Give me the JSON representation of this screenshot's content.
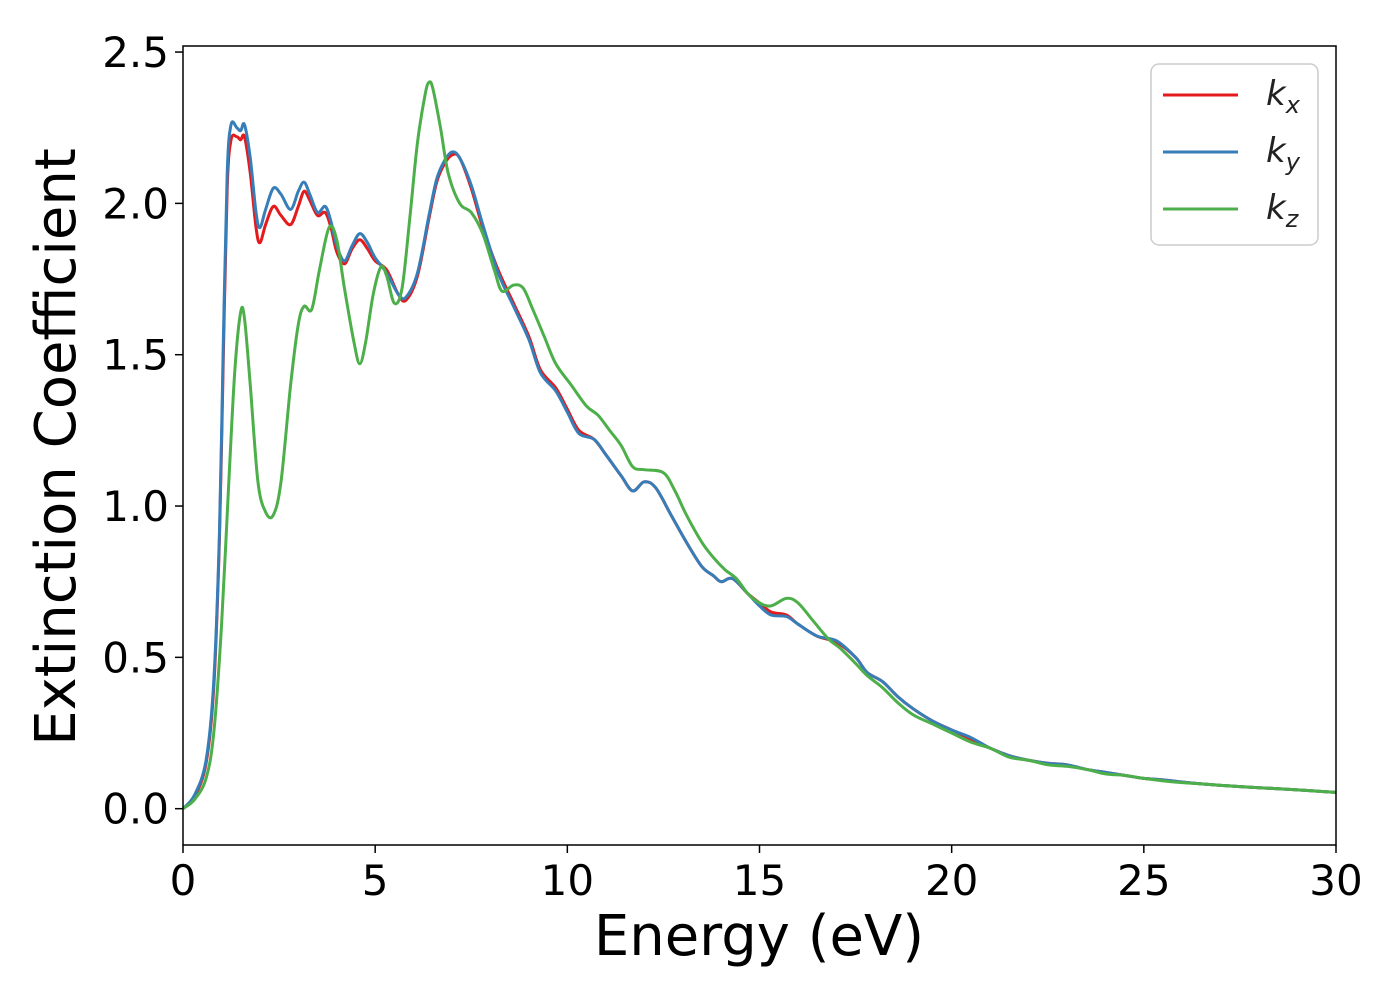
{
  "chart_data": {
    "type": "line",
    "title": "",
    "xlabel": "Energy (eV)",
    "ylabel": "Extinction Coefficient",
    "xlim": [
      0,
      30
    ],
    "ylim": [
      -0.12,
      2.52
    ],
    "xticks": [
      0,
      5,
      10,
      15,
      20,
      25,
      30
    ],
    "xtick_labels": [
      "0",
      "5",
      "10",
      "15",
      "20",
      "25",
      "30"
    ],
    "yticks": [
      0.0,
      0.5,
      1.0,
      1.5,
      2.0,
      2.5
    ],
    "ytick_labels": [
      "0.0",
      "0.5",
      "1.0",
      "1.5",
      "2.0",
      "2.5"
    ],
    "grid": false,
    "legend_position": "top-right",
    "series": [
      {
        "name": "k_x",
        "legend_base": "k",
        "legend_sub": "x",
        "color": "#e41a1c",
        "points": [
          [
            0,
            0.0
          ],
          [
            0.3,
            0.04
          ],
          [
            0.6,
            0.15
          ],
          [
            0.8,
            0.4
          ],
          [
            0.95,
            0.9
          ],
          [
            1.05,
            1.5
          ],
          [
            1.15,
            2.05
          ],
          [
            1.25,
            2.21
          ],
          [
            1.4,
            2.22
          ],
          [
            1.5,
            2.21
          ],
          [
            1.6,
            2.22
          ],
          [
            1.75,
            2.1
          ],
          [
            1.9,
            1.92
          ],
          [
            2.0,
            1.87
          ],
          [
            2.15,
            1.93
          ],
          [
            2.35,
            1.99
          ],
          [
            2.55,
            1.96
          ],
          [
            2.8,
            1.93
          ],
          [
            3.0,
            1.99
          ],
          [
            3.15,
            2.04
          ],
          [
            3.3,
            2.01
          ],
          [
            3.5,
            1.96
          ],
          [
            3.7,
            1.97
          ],
          [
            3.85,
            1.92
          ],
          [
            4.0,
            1.84
          ],
          [
            4.2,
            1.8
          ],
          [
            4.4,
            1.85
          ],
          [
            4.6,
            1.88
          ],
          [
            4.8,
            1.85
          ],
          [
            5.0,
            1.81
          ],
          [
            5.3,
            1.78
          ],
          [
            5.6,
            1.7
          ],
          [
            5.8,
            1.68
          ],
          [
            6.1,
            1.76
          ],
          [
            6.4,
            1.95
          ],
          [
            6.6,
            2.07
          ],
          [
            6.8,
            2.13
          ],
          [
            7.0,
            2.16
          ],
          [
            7.2,
            2.15
          ],
          [
            7.5,
            2.05
          ],
          [
            7.8,
            1.92
          ],
          [
            8.2,
            1.78
          ],
          [
            8.6,
            1.67
          ],
          [
            9.0,
            1.56
          ],
          [
            9.3,
            1.45
          ],
          [
            9.7,
            1.39
          ],
          [
            10.0,
            1.32
          ],
          [
            10.3,
            1.25
          ],
          [
            10.7,
            1.22
          ],
          [
            11.0,
            1.17
          ],
          [
            11.4,
            1.1
          ],
          [
            11.7,
            1.05
          ],
          [
            12.0,
            1.08
          ],
          [
            12.3,
            1.06
          ],
          [
            12.7,
            0.97
          ],
          [
            13.1,
            0.88
          ],
          [
            13.5,
            0.8
          ],
          [
            13.8,
            0.77
          ],
          [
            14.0,
            0.75
          ],
          [
            14.3,
            0.76
          ],
          [
            14.7,
            0.71
          ],
          [
            15.0,
            0.68
          ],
          [
            15.3,
            0.65
          ],
          [
            15.7,
            0.64
          ],
          [
            16.0,
            0.61
          ],
          [
            16.5,
            0.57
          ],
          [
            17.0,
            0.55
          ],
          [
            17.5,
            0.5
          ],
          [
            17.8,
            0.45
          ],
          [
            18.2,
            0.42
          ],
          [
            18.6,
            0.37
          ],
          [
            19.0,
            0.33
          ],
          [
            19.5,
            0.29
          ],
          [
            20.0,
            0.26
          ],
          [
            20.5,
            0.23
          ],
          [
            21.0,
            0.2
          ],
          [
            21.5,
            0.175
          ],
          [
            22.0,
            0.16
          ],
          [
            22.5,
            0.15
          ],
          [
            23.0,
            0.145
          ],
          [
            23.5,
            0.13
          ],
          [
            24.0,
            0.12
          ],
          [
            24.5,
            0.11
          ],
          [
            25.0,
            0.1
          ],
          [
            25.5,
            0.095
          ],
          [
            26.0,
            0.088
          ],
          [
            26.5,
            0.082
          ],
          [
            27.0,
            0.077
          ],
          [
            27.5,
            0.073
          ],
          [
            28.0,
            0.069
          ],
          [
            28.5,
            0.066
          ],
          [
            29.0,
            0.062
          ],
          [
            29.5,
            0.058
          ],
          [
            30.0,
            0.054
          ]
        ]
      },
      {
        "name": "k_y",
        "legend_base": "k",
        "legend_sub": "y",
        "color": "#377eb8",
        "points": [
          [
            0,
            0.0
          ],
          [
            0.3,
            0.045
          ],
          [
            0.6,
            0.16
          ],
          [
            0.8,
            0.42
          ],
          [
            0.95,
            0.92
          ],
          [
            1.05,
            1.55
          ],
          [
            1.15,
            2.1
          ],
          [
            1.25,
            2.26
          ],
          [
            1.4,
            2.25
          ],
          [
            1.5,
            2.24
          ],
          [
            1.6,
            2.26
          ],
          [
            1.75,
            2.15
          ],
          [
            1.9,
            1.97
          ],
          [
            2.0,
            1.92
          ],
          [
            2.15,
            1.98
          ],
          [
            2.35,
            2.05
          ],
          [
            2.55,
            2.03
          ],
          [
            2.8,
            1.98
          ],
          [
            3.0,
            2.04
          ],
          [
            3.15,
            2.07
          ],
          [
            3.3,
            2.03
          ],
          [
            3.5,
            1.97
          ],
          [
            3.7,
            1.99
          ],
          [
            3.85,
            1.94
          ],
          [
            4.0,
            1.86
          ],
          [
            4.2,
            1.81
          ],
          [
            4.4,
            1.86
          ],
          [
            4.6,
            1.9
          ],
          [
            4.8,
            1.87
          ],
          [
            5.0,
            1.82
          ],
          [
            5.3,
            1.77
          ],
          [
            5.6,
            1.7
          ],
          [
            5.8,
            1.69
          ],
          [
            6.1,
            1.77
          ],
          [
            6.4,
            1.96
          ],
          [
            6.6,
            2.08
          ],
          [
            6.8,
            2.14
          ],
          [
            7.0,
            2.17
          ],
          [
            7.2,
            2.15
          ],
          [
            7.5,
            2.06
          ],
          [
            7.8,
            1.93
          ],
          [
            8.2,
            1.77
          ],
          [
            8.6,
            1.66
          ],
          [
            9.0,
            1.55
          ],
          [
            9.3,
            1.44
          ],
          [
            9.7,
            1.38
          ],
          [
            10.0,
            1.31
          ],
          [
            10.3,
            1.24
          ],
          [
            10.7,
            1.22
          ],
          [
            11.0,
            1.17
          ],
          [
            11.4,
            1.1
          ],
          [
            11.7,
            1.05
          ],
          [
            12.0,
            1.08
          ],
          [
            12.3,
            1.06
          ],
          [
            12.7,
            0.97
          ],
          [
            13.1,
            0.88
          ],
          [
            13.5,
            0.8
          ],
          [
            13.8,
            0.77
          ],
          [
            14.0,
            0.75
          ],
          [
            14.3,
            0.76
          ],
          [
            14.7,
            0.71
          ],
          [
            15.0,
            0.67
          ],
          [
            15.3,
            0.64
          ],
          [
            15.7,
            0.635
          ],
          [
            16.0,
            0.61
          ],
          [
            16.5,
            0.57
          ],
          [
            17.0,
            0.555
          ],
          [
            17.5,
            0.5
          ],
          [
            17.8,
            0.45
          ],
          [
            18.2,
            0.42
          ],
          [
            18.6,
            0.37
          ],
          [
            19.0,
            0.33
          ],
          [
            19.5,
            0.29
          ],
          [
            20.0,
            0.26
          ],
          [
            20.5,
            0.235
          ],
          [
            21.0,
            0.2
          ],
          [
            21.5,
            0.175
          ],
          [
            22.0,
            0.16
          ],
          [
            22.5,
            0.15
          ],
          [
            23.0,
            0.145
          ],
          [
            23.5,
            0.13
          ],
          [
            24.0,
            0.12
          ],
          [
            24.5,
            0.11
          ],
          [
            25.0,
            0.1
          ],
          [
            25.5,
            0.095
          ],
          [
            26.0,
            0.088
          ],
          [
            26.5,
            0.082
          ],
          [
            27.0,
            0.077
          ],
          [
            27.5,
            0.073
          ],
          [
            28.0,
            0.069
          ],
          [
            28.5,
            0.066
          ],
          [
            29.0,
            0.062
          ],
          [
            29.5,
            0.058
          ],
          [
            30.0,
            0.054
          ]
        ]
      },
      {
        "name": "k_z",
        "legend_base": "k",
        "legend_sub": "z",
        "color": "#4daf4a",
        "points": [
          [
            0,
            0.0
          ],
          [
            0.3,
            0.03
          ],
          [
            0.6,
            0.1
          ],
          [
            0.8,
            0.25
          ],
          [
            1.0,
            0.6
          ],
          [
            1.2,
            1.1
          ],
          [
            1.35,
            1.45
          ],
          [
            1.5,
            1.64
          ],
          [
            1.6,
            1.62
          ],
          [
            1.75,
            1.4
          ],
          [
            1.95,
            1.08
          ],
          [
            2.15,
            0.98
          ],
          [
            2.35,
            0.97
          ],
          [
            2.55,
            1.08
          ],
          [
            2.8,
            1.4
          ],
          [
            3.0,
            1.6
          ],
          [
            3.15,
            1.66
          ],
          [
            3.35,
            1.65
          ],
          [
            3.55,
            1.78
          ],
          [
            3.8,
            1.92
          ],
          [
            4.0,
            1.88
          ],
          [
            4.2,
            1.72
          ],
          [
            4.45,
            1.54
          ],
          [
            4.6,
            1.47
          ],
          [
            4.75,
            1.54
          ],
          [
            4.95,
            1.7
          ],
          [
            5.15,
            1.79
          ],
          [
            5.3,
            1.76
          ],
          [
            5.5,
            1.67
          ],
          [
            5.7,
            1.72
          ],
          [
            5.9,
            1.95
          ],
          [
            6.1,
            2.2
          ],
          [
            6.3,
            2.36
          ],
          [
            6.4,
            2.4
          ],
          [
            6.5,
            2.38
          ],
          [
            6.7,
            2.25
          ],
          [
            6.9,
            2.1
          ],
          [
            7.2,
            2.0
          ],
          [
            7.5,
            1.97
          ],
          [
            7.8,
            1.9
          ],
          [
            8.1,
            1.78
          ],
          [
            8.3,
            1.71
          ],
          [
            8.6,
            1.73
          ],
          [
            8.85,
            1.72
          ],
          [
            9.1,
            1.65
          ],
          [
            9.4,
            1.56
          ],
          [
            9.7,
            1.47
          ],
          [
            10.1,
            1.4
          ],
          [
            10.5,
            1.33
          ],
          [
            10.8,
            1.3
          ],
          [
            11.1,
            1.25
          ],
          [
            11.4,
            1.2
          ],
          [
            11.7,
            1.13
          ],
          [
            12.0,
            1.12
          ],
          [
            12.5,
            1.11
          ],
          [
            12.8,
            1.05
          ],
          [
            13.1,
            0.97
          ],
          [
            13.5,
            0.88
          ],
          [
            13.8,
            0.83
          ],
          [
            14.1,
            0.79
          ],
          [
            14.4,
            0.76
          ],
          [
            14.7,
            0.71
          ],
          [
            15.0,
            0.68
          ],
          [
            15.3,
            0.67
          ],
          [
            15.7,
            0.695
          ],
          [
            16.0,
            0.68
          ],
          [
            16.4,
            0.62
          ],
          [
            16.8,
            0.56
          ],
          [
            17.1,
            0.53
          ],
          [
            17.5,
            0.48
          ],
          [
            17.8,
            0.44
          ],
          [
            18.2,
            0.4
          ],
          [
            18.6,
            0.35
          ],
          [
            19.0,
            0.31
          ],
          [
            19.5,
            0.28
          ],
          [
            20.0,
            0.25
          ],
          [
            20.5,
            0.22
          ],
          [
            21.0,
            0.2
          ],
          [
            21.5,
            0.17
          ],
          [
            22.0,
            0.16
          ],
          [
            22.5,
            0.145
          ],
          [
            23.0,
            0.14
          ],
          [
            23.5,
            0.13
          ],
          [
            24.0,
            0.115
          ],
          [
            24.5,
            0.11
          ],
          [
            25.0,
            0.1
          ],
          [
            25.5,
            0.092
          ],
          [
            26.0,
            0.086
          ],
          [
            26.5,
            0.082
          ],
          [
            27.0,
            0.077
          ],
          [
            27.5,
            0.073
          ],
          [
            28.0,
            0.069
          ],
          [
            28.5,
            0.066
          ],
          [
            29.0,
            0.062
          ],
          [
            29.5,
            0.058
          ],
          [
            30.0,
            0.054
          ]
        ]
      }
    ]
  }
}
